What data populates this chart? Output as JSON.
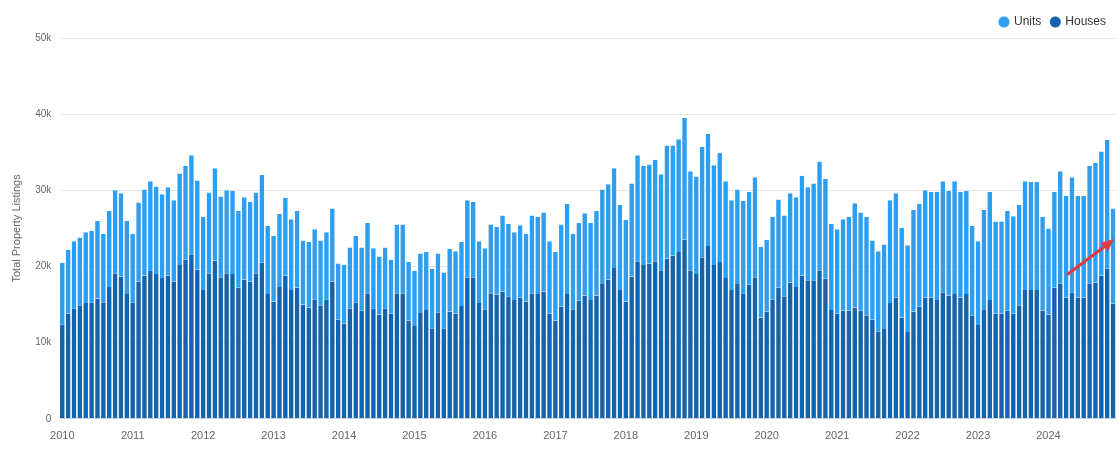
{
  "chart_data": {
    "type": "bar",
    "stacked": true,
    "ylabel": "Total Property Listings",
    "categories": [
      "2010",
      null,
      null,
      null,
      null,
      null,
      null,
      null,
      null,
      null,
      null,
      null,
      "2011",
      null,
      null,
      null,
      null,
      null,
      null,
      null,
      null,
      null,
      null,
      null,
      "2012",
      null,
      null,
      null,
      null,
      null,
      null,
      null,
      null,
      null,
      null,
      null,
      "2013",
      null,
      null,
      null,
      null,
      null,
      null,
      null,
      null,
      null,
      null,
      null,
      "2014",
      null,
      null,
      null,
      null,
      null,
      null,
      null,
      null,
      null,
      null,
      null,
      "2015",
      null,
      null,
      null,
      null,
      null,
      null,
      null,
      null,
      null,
      null,
      null,
      "2016",
      null,
      null,
      null,
      null,
      null,
      null,
      null,
      null,
      null,
      null,
      null,
      "2017",
      null,
      null,
      null,
      null,
      null,
      null,
      null,
      null,
      null,
      null,
      null,
      "2018",
      null,
      null,
      null,
      null,
      null,
      null,
      null,
      null,
      null,
      null,
      null,
      "2019",
      null,
      null,
      null,
      null,
      null,
      null,
      null,
      null,
      null,
      null,
      null,
      "2020",
      null,
      null,
      null,
      null,
      null,
      null,
      null,
      null,
      null,
      null,
      null,
      "2021",
      null,
      null,
      null,
      null,
      null,
      null,
      null,
      null,
      null,
      null,
      null,
      "2022",
      null,
      null,
      null,
      null,
      null,
      null,
      null,
      null,
      null,
      null,
      null,
      "2023",
      null,
      null,
      null,
      null,
      null,
      null,
      null,
      null,
      null,
      null,
      null,
      "2024",
      null,
      null,
      null,
      null,
      null,
      null,
      null,
      null,
      null,
      null,
      null
    ],
    "series": [
      {
        "name": "Houses",
        "color": "#1463ad",
        "values": [
          12400,
          13800,
          14500,
          14900,
          15200,
          15300,
          15800,
          15300,
          17300,
          19100,
          18700,
          16400,
          15300,
          18000,
          18800,
          19500,
          19000,
          18500,
          18800,
          18000,
          20200,
          20900,
          21600,
          19600,
          16900,
          19100,
          20800,
          18600,
          19100,
          19000,
          17200,
          18300,
          18000,
          19100,
          20500,
          16400,
          15400,
          17300,
          18800,
          16900,
          17200,
          15000,
          14600,
          15700,
          14900,
          15700,
          18000,
          13000,
          12500,
          14500,
          15300,
          14200,
          16500,
          14500,
          13700,
          14500,
          13800,
          16500,
          16500,
          12900,
          12200,
          13900,
          14300,
          11900,
          14000,
          11900,
          14100,
          13800,
          14800,
          18600,
          18600,
          15200,
          14400,
          16500,
          16300,
          16700,
          16100,
          15600,
          15900,
          15400,
          16500,
          16400,
          16700,
          13800,
          12900,
          14700,
          16400,
          14400,
          15500,
          16200,
          15600,
          16200,
          17700,
          18300,
          19800,
          16900,
          15400,
          18700,
          20700,
          20200,
          20400,
          20700,
          19500,
          21000,
          21400,
          21900,
          23500,
          19500,
          19000,
          21200,
          22700,
          20200,
          20600,
          18500,
          16900,
          17700,
          16500,
          17600,
          18600,
          13300,
          14100,
          15700,
          17200,
          16100,
          17900,
          17300,
          18800,
          18200,
          18200,
          19500,
          18400,
          14300,
          13800,
          14200,
          14200,
          14600,
          14200,
          13600,
          13000,
          11500,
          11800,
          15200,
          15900,
          13300,
          11400,
          14100,
          14700,
          15900,
          15900,
          15600,
          16600,
          16200,
          16400,
          15900,
          16400,
          13600,
          12300,
          14300,
          15600,
          13800,
          13800,
          14200,
          13800,
          14900,
          16900,
          16900,
          16900,
          14200,
          13700,
          17200,
          17800,
          15900,
          16600,
          15900,
          15900,
          17800,
          17900,
          18800,
          19700,
          15100
        ]
      },
      {
        "name": "Units",
        "color": "#2d9ef0",
        "values": [
          8100,
          8400,
          8800,
          8900,
          9300,
          9400,
          10200,
          9000,
          10000,
          10900,
          10900,
          9600,
          9000,
          10400,
          11300,
          11700,
          11500,
          11000,
          11600,
          10700,
          12000,
          12300,
          13000,
          11700,
          9600,
          10600,
          12100,
          10600,
          10900,
          10900,
          10100,
          10800,
          10500,
          10600,
          11500,
          8900,
          8600,
          9600,
          10200,
          9300,
          10100,
          8400,
          8600,
          9200,
          8500,
          8800,
          9600,
          7400,
          7700,
          8000,
          8700,
          8300,
          9200,
          7900,
          7600,
          8000,
          7100,
          9000,
          9000,
          7700,
          7200,
          7800,
          7600,
          7800,
          7700,
          7300,
          8200,
          8200,
          8400,
          10100,
          9900,
          8100,
          8000,
          9000,
          8900,
          10000,
          9500,
          8900,
          9500,
          8900,
          10200,
          10100,
          10400,
          9500,
          9000,
          10800,
          11800,
          9900,
          10200,
          10800,
          10100,
          11100,
          12400,
          12500,
          13100,
          11200,
          10700,
          12200,
          13900,
          13000,
          13000,
          13300,
          12600,
          14900,
          14500,
          14800,
          16000,
          13000,
          12800,
          14500,
          14700,
          13100,
          14300,
          12700,
          11800,
          12400,
          12100,
          12200,
          13100,
          9300,
          9400,
          10800,
          11600,
          10600,
          11700,
          11800,
          13100,
          12200,
          12700,
          14300,
          13100,
          11300,
          11100,
          12000,
          12300,
          13700,
          12900,
          12900,
          10400,
          10500,
          11100,
          13500,
          13700,
          11800,
          11400,
          13300,
          13500,
          14100,
          13900,
          14200,
          14600,
          13700,
          14800,
          13900,
          13500,
          11700,
          11000,
          13100,
          14200,
          12100,
          12100,
          13100,
          12800,
          13200,
          14300,
          14200,
          14200,
          12300,
          11300,
          12600,
          14700,
          13400,
          15100,
          13400,
          13400,
          15400,
          15700,
          16300,
          16900,
          12500
        ]
      }
    ],
    "ylim": [
      0,
      50000
    ],
    "yticks": [
      0,
      {
        "value": 10000,
        "label": "10k"
      },
      {
        "value": 20000,
        "label": "20k"
      },
      {
        "value": 30000,
        "label": "30k"
      },
      {
        "value": 40000,
        "label": "40k"
      },
      {
        "value": 50000,
        "label": "50k"
      }
    ],
    "grid": "y",
    "legend": "top right"
  }
}
